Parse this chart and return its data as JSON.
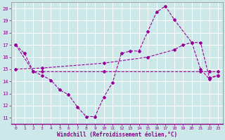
{
  "xlabel": "Windchill (Refroidissement éolien,°C)",
  "bg_color": "#cce8e8",
  "line_color": "#990099",
  "grid_color": "#ffffff",
  "xlim": [
    -0.5,
    23.5
  ],
  "ylim": [
    10.5,
    20.5
  ],
  "yticks": [
    11,
    12,
    13,
    14,
    15,
    16,
    17,
    18,
    19,
    20
  ],
  "xticks": [
    0,
    1,
    2,
    3,
    4,
    5,
    6,
    7,
    8,
    9,
    10,
    11,
    12,
    13,
    14,
    15,
    16,
    17,
    18,
    19,
    20,
    21,
    22,
    23
  ],
  "line1_x": [
    0,
    1,
    2,
    3,
    4,
    5,
    6,
    7,
    8,
    9,
    10,
    11,
    12,
    13,
    14,
    15,
    16,
    17,
    18,
    20,
    21,
    22,
    23
  ],
  "line1_y": [
    17.0,
    16.3,
    14.8,
    14.5,
    14.1,
    13.3,
    12.9,
    11.9,
    11.1,
    11.1,
    12.7,
    13.9,
    16.3,
    16.5,
    16.5,
    18.1,
    19.7,
    20.2,
    19.1,
    17.2,
    15.0,
    14.2,
    14.5
  ],
  "line2_x": [
    0,
    2,
    3,
    10,
    21,
    22,
    23
  ],
  "line2_y": [
    17.0,
    14.8,
    14.8,
    14.8,
    14.8,
    14.8,
    14.8
  ],
  "line3_x": [
    0,
    3,
    10,
    15,
    18,
    19,
    20,
    21,
    22,
    23
  ],
  "line3_y": [
    15.0,
    15.1,
    15.5,
    16.0,
    16.6,
    17.0,
    17.2,
    17.2,
    14.3,
    14.5
  ]
}
